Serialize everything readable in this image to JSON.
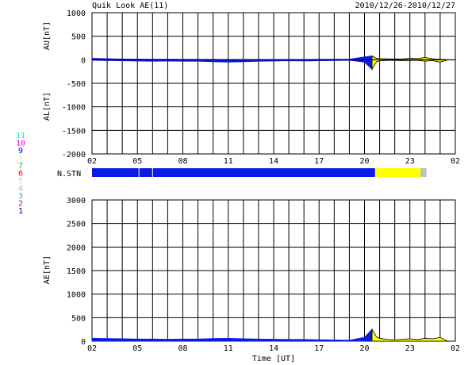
{
  "header": {
    "title": "Quik Look AE(11)",
    "date_range": "2010/12/26-2010/12/27"
  },
  "station_legend": [
    {
      "label": "11",
      "color": "#00e8e8"
    },
    {
      "label": "10",
      "color": "#e000e0"
    },
    {
      "label": "9",
      "color": "#0000ff"
    },
    {
      "label": "8",
      "color": "#f0f0a0"
    },
    {
      "label": "7",
      "color": "#00d000"
    },
    {
      "label": "6",
      "color": "#ff0000"
    },
    {
      "label": "5",
      "color": "#d0d0d0"
    },
    {
      "label": "4",
      "color": "#b0b0b0"
    },
    {
      "label": "3",
      "color": "#20b0b0"
    },
    {
      "label": "2",
      "color": "#b000b0"
    },
    {
      "label": "1",
      "color": "#0000c0"
    }
  ],
  "colors": {
    "data_blue": "#0a1be6",
    "data_yellow": "#ffff00",
    "data_gray": "#c0c0c0"
  },
  "x_tick_labels": [
    "02",
    "05",
    "08",
    "11",
    "14",
    "17",
    "20",
    "23",
    "02"
  ],
  "xlabel": "Time [UT]",
  "chart_data": [
    {
      "type": "area",
      "name": "AU/AL",
      "ylabel_top": "AU[nT]",
      "ylabel_bottom": "AL[nT]",
      "ylim": [
        -2000,
        1000
      ],
      "yticks": [
        1000,
        500,
        0,
        -500,
        -1000,
        -1500,
        -2000
      ],
      "xlim_hours_from_02UT": [
        0,
        24
      ],
      "grid": true,
      "au": {
        "x": [
          0,
          1,
          2,
          3,
          4,
          5,
          6,
          7,
          8,
          9,
          10,
          11,
          12,
          13,
          14,
          15,
          16,
          17,
          18,
          18.5,
          18.8,
          19,
          19.5,
          20,
          20.5,
          21,
          21.5,
          22,
          22.5,
          23,
          23.5
        ],
        "values": [
          30,
          20,
          15,
          12,
          10,
          10,
          8,
          8,
          8,
          6,
          5,
          5,
          5,
          5,
          5,
          8,
          10,
          10,
          60,
          80,
          30,
          25,
          20,
          15,
          20,
          30,
          25,
          50,
          20,
          10,
          0
        ]
      },
      "al": {
        "x": [
          0,
          1,
          2,
          3,
          4,
          5,
          6,
          7,
          8,
          9,
          10,
          11,
          12,
          13,
          14,
          15,
          16,
          17,
          18,
          18.5,
          18.8,
          19,
          19.5,
          20,
          20.5,
          21,
          21.5,
          22,
          22.5,
          23,
          23.5
        ],
        "values": [
          -10,
          -15,
          -20,
          -25,
          -30,
          -25,
          -30,
          -30,
          -40,
          -50,
          -40,
          -30,
          -25,
          -20,
          -25,
          -20,
          -15,
          -10,
          -50,
          -200,
          -40,
          -20,
          -15,
          -10,
          -20,
          -15,
          -10,
          -30,
          -20,
          -50,
          0
        ]
      }
    },
    {
      "type": "bar",
      "name": "N.STN",
      "label": "N.STN",
      "segments": [
        {
          "from_hour": 0,
          "to_hour": 3.1,
          "station": "9"
        },
        {
          "from_hour": 3.1,
          "to_hour": 4.0,
          "station": "9"
        },
        {
          "from_hour": 4.0,
          "to_hour": 18.7,
          "station": "9"
        },
        {
          "from_hour": 18.7,
          "to_hour": 21.7,
          "station": "8"
        },
        {
          "from_hour": 21.7,
          "to_hour": 22.1,
          "station": "4"
        }
      ]
    },
    {
      "type": "area",
      "name": "AE",
      "ylabel": "AE[nT]",
      "ylim": [
        0,
        3000
      ],
      "yticks": [
        3000,
        2500,
        2000,
        1500,
        1000,
        500,
        0
      ],
      "xlim_hours_from_02UT": [
        0,
        24
      ],
      "grid": true,
      "ae": {
        "x": [
          0,
          1,
          2,
          3,
          4,
          5,
          6,
          7,
          8,
          9,
          10,
          11,
          12,
          13,
          14,
          15,
          16,
          17,
          18,
          18.5,
          18.8,
          19,
          19.5,
          20,
          20.5,
          21,
          21.5,
          22,
          22.5,
          23,
          23.5
        ],
        "values": [
          60,
          55,
          50,
          45,
          45,
          40,
          45,
          45,
          55,
          60,
          50,
          45,
          40,
          35,
          35,
          30,
          25,
          20,
          80,
          250,
          90,
          60,
          40,
          30,
          40,
          50,
          35,
          60,
          50,
          80,
          0
        ]
      }
    }
  ]
}
